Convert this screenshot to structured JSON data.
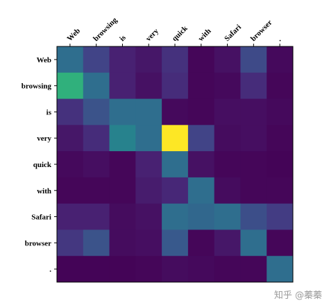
{
  "chart_data": {
    "type": "heatmap",
    "x_labels": [
      "Web",
      "browsing",
      "is",
      "very",
      "quick",
      "with",
      "Safari",
      "browser",
      "."
    ],
    "y_labels": [
      "Web",
      "browsing",
      "is",
      "very",
      "quick",
      "with",
      "Safari",
      "browser",
      "."
    ],
    "values": [
      [
        0.45,
        0.25,
        0.12,
        0.08,
        0.18,
        0.02,
        0.06,
        0.28,
        0.03
      ],
      [
        0.78,
        0.45,
        0.12,
        0.06,
        0.16,
        0.02,
        0.03,
        0.16,
        0.02
      ],
      [
        0.18,
        0.32,
        0.45,
        0.45,
        0.03,
        0.02,
        0.05,
        0.05,
        0.03
      ],
      [
        0.08,
        0.16,
        0.55,
        0.45,
        1.0,
        0.25,
        0.04,
        0.05,
        0.02
      ],
      [
        0.03,
        0.05,
        0.02,
        0.12,
        0.45,
        0.06,
        0.02,
        0.02,
        0.01
      ],
      [
        0.02,
        0.02,
        0.02,
        0.1,
        0.14,
        0.45,
        0.04,
        0.02,
        0.02
      ],
      [
        0.12,
        0.12,
        0.04,
        0.06,
        0.45,
        0.42,
        0.45,
        0.3,
        0.22
      ],
      [
        0.2,
        0.32,
        0.04,
        0.05,
        0.35,
        0.02,
        0.08,
        0.45,
        0.02
      ],
      [
        0.01,
        0.01,
        0.01,
        0.02,
        0.04,
        0.03,
        0.02,
        0.02,
        0.45
      ]
    ],
    "colormap": "viridis",
    "value_range": [
      0,
      1
    ]
  },
  "watermark": "知乎 @蓁蓁"
}
